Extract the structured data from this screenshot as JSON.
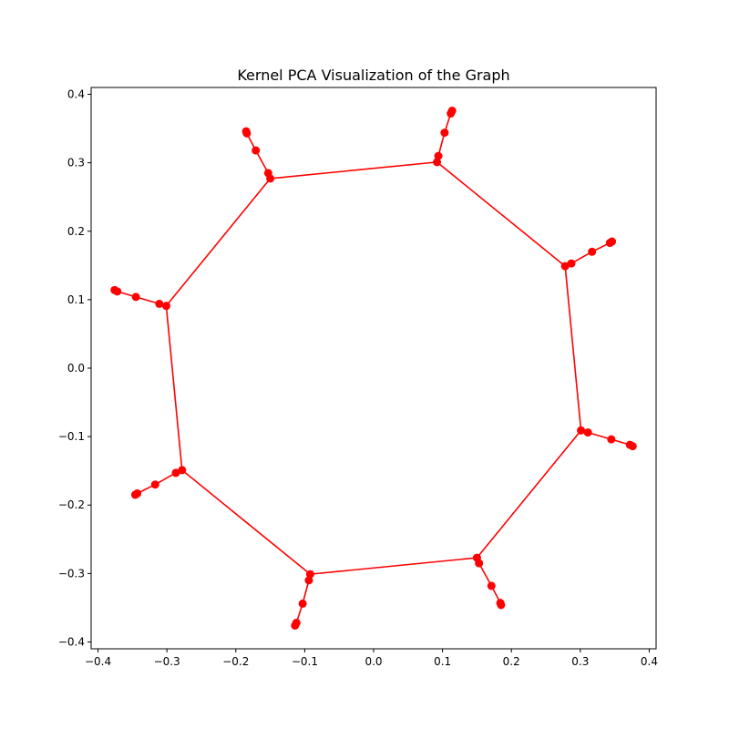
{
  "chart_data": {
    "type": "scatter",
    "title": "Kernel PCA Visualization of the Graph",
    "xlabel": "",
    "ylabel": "",
    "xlim": [
      -0.41,
      0.41
    ],
    "ylim": [
      -0.41,
      0.41
    ],
    "xticks": [
      -0.4,
      -0.3,
      -0.2,
      -0.1,
      0.0,
      0.1,
      0.2,
      0.3,
      0.4
    ],
    "yticks": [
      -0.4,
      -0.3,
      -0.2,
      -0.1,
      0.0,
      0.1,
      0.2,
      0.3,
      0.4
    ],
    "xtick_labels": [
      "−0.4",
      "−0.3",
      "−0.2",
      "−0.1",
      "0.0",
      "0.1",
      "0.2",
      "0.3",
      "0.4"
    ],
    "ytick_labels": [
      "−0.4",
      "−0.3",
      "−0.2",
      "−0.1",
      "0.0",
      "0.1",
      "0.2",
      "0.3",
      "0.4"
    ],
    "grid": false,
    "color": "#ff0000",
    "nodes": [
      [
        0.092,
        0.301
      ],
      [
        0.094,
        0.31
      ],
      [
        0.103,
        0.344
      ],
      [
        0.112,
        0.372
      ],
      [
        0.114,
        0.376
      ],
      [
        0.278,
        0.149
      ],
      [
        0.287,
        0.153
      ],
      [
        0.317,
        0.17
      ],
      [
        0.343,
        0.183
      ],
      [
        0.346,
        0.185
      ],
      [
        0.301,
        -0.091
      ],
      [
        0.311,
        -0.094
      ],
      [
        0.345,
        -0.104
      ],
      [
        0.372,
        -0.112
      ],
      [
        0.376,
        -0.114
      ],
      [
        0.15,
        -0.277
      ],
      [
        0.153,
        -0.285
      ],
      [
        0.171,
        -0.318
      ],
      [
        0.184,
        -0.343
      ],
      [
        0.185,
        -0.346
      ],
      [
        -0.092,
        -0.301
      ],
      [
        -0.094,
        -0.31
      ],
      [
        -0.103,
        -0.344
      ],
      [
        -0.112,
        -0.372
      ],
      [
        -0.114,
        -0.376
      ],
      [
        -0.278,
        -0.149
      ],
      [
        -0.287,
        -0.153
      ],
      [
        -0.317,
        -0.17
      ],
      [
        -0.343,
        -0.183
      ],
      [
        -0.346,
        -0.185
      ],
      [
        -0.301,
        0.091
      ],
      [
        -0.311,
        0.094
      ],
      [
        -0.345,
        0.104
      ],
      [
        -0.372,
        0.112
      ],
      [
        -0.376,
        0.114
      ],
      [
        -0.15,
        0.277
      ],
      [
        -0.153,
        0.285
      ],
      [
        -0.171,
        0.318
      ],
      [
        -0.184,
        0.343
      ],
      [
        -0.185,
        0.346
      ]
    ],
    "edges": [
      [
        0,
        5
      ],
      [
        5,
        10
      ],
      [
        10,
        15
      ],
      [
        15,
        20
      ],
      [
        20,
        25
      ],
      [
        25,
        30
      ],
      [
        30,
        35
      ],
      [
        35,
        0
      ],
      [
        0,
        1
      ],
      [
        1,
        2
      ],
      [
        2,
        3
      ],
      [
        3,
        4
      ],
      [
        5,
        6
      ],
      [
        6,
        7
      ],
      [
        7,
        8
      ],
      [
        8,
        9
      ],
      [
        10,
        11
      ],
      [
        11,
        12
      ],
      [
        12,
        13
      ],
      [
        13,
        14
      ],
      [
        15,
        16
      ],
      [
        16,
        17
      ],
      [
        17,
        18
      ],
      [
        18,
        19
      ],
      [
        20,
        21
      ],
      [
        21,
        22
      ],
      [
        22,
        23
      ],
      [
        23,
        24
      ],
      [
        25,
        26
      ],
      [
        26,
        27
      ],
      [
        27,
        28
      ],
      [
        28,
        29
      ],
      [
        30,
        31
      ],
      [
        31,
        32
      ],
      [
        32,
        33
      ],
      [
        33,
        34
      ],
      [
        35,
        36
      ],
      [
        36,
        37
      ],
      [
        37,
        38
      ],
      [
        38,
        39
      ]
    ]
  }
}
